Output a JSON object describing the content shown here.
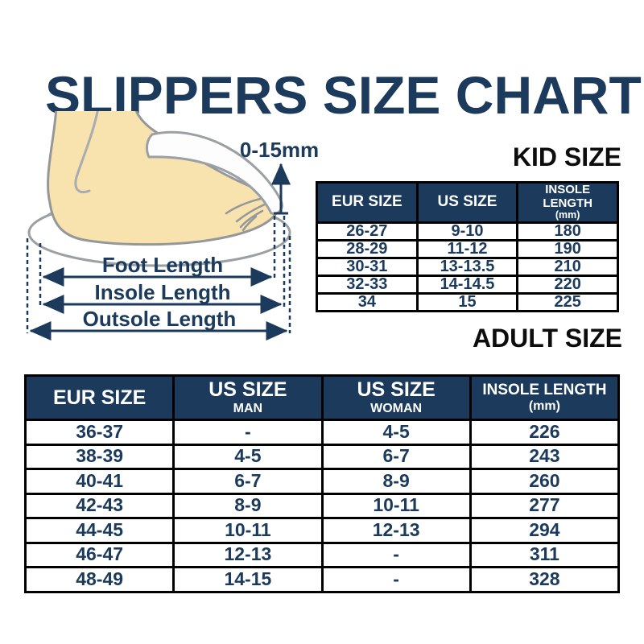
{
  "page": {
    "title": "SLIPPERS SIZE CHART"
  },
  "colors": {
    "navy_text": "#1b3a5c",
    "table_header_bg": "#1b3a5c",
    "table_header_text": "#ffffff",
    "heading_black": "#0d0d0d",
    "table_border": "#000000",
    "foot_skin": "#f8e2ad",
    "illustration_outline": "#9aa0a3"
  },
  "diagram": {
    "gap_label": "0-15mm",
    "measurements": [
      "Foot Length",
      "Insole Length",
      "Outsole Length"
    ]
  },
  "kid": {
    "heading": "KID SIZE",
    "headers": [
      [
        "EUR SIZE"
      ],
      [
        "US SIZE"
      ],
      [
        "INSOLE LENGTH",
        "(mm)"
      ]
    ],
    "rows": [
      [
        "26-27",
        "9-10",
        "180"
      ],
      [
        "28-29",
        "11-12",
        "190"
      ],
      [
        "30-31",
        "13-13.5",
        "210"
      ],
      [
        "32-33",
        "14-14.5",
        "220"
      ],
      [
        "34",
        "15",
        "225"
      ]
    ]
  },
  "adult": {
    "heading": "ADULT SIZE",
    "headers": [
      [
        "EUR SIZE"
      ],
      [
        "US SIZE",
        "MAN"
      ],
      [
        "US SIZE",
        "WOMAN"
      ],
      [
        "INSOLE LENGTH",
        "(mm)"
      ]
    ],
    "rows": [
      [
        "36-37",
        "-",
        "4-5",
        "226"
      ],
      [
        "38-39",
        "4-5",
        "6-7",
        "243"
      ],
      [
        "40-41",
        "6-7",
        "8-9",
        "260"
      ],
      [
        "42-43",
        "8-9",
        "10-11",
        "277"
      ],
      [
        "44-45",
        "10-11",
        "12-13",
        "294"
      ],
      [
        "46-47",
        "12-13",
        "-",
        "311"
      ],
      [
        "48-49",
        "14-15",
        "-",
        "328"
      ]
    ]
  }
}
